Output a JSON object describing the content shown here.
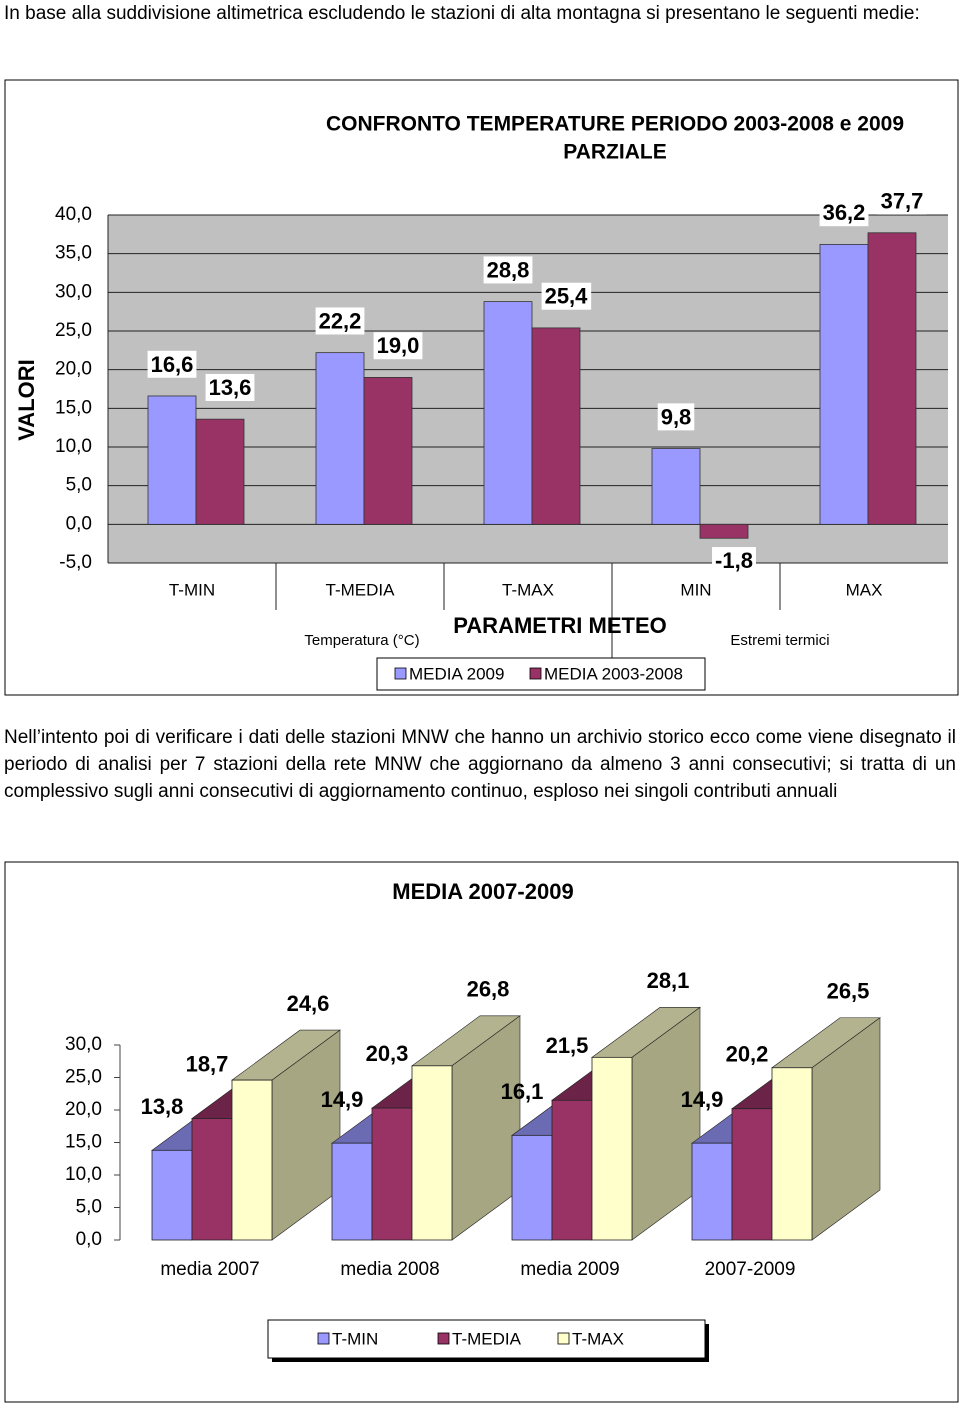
{
  "paragraphs": [
    "In base alla suddivisione altimetrica escludendo le stazioni di alta montagna si presentano le seguenti medie:",
    "Nell’intento poi di verificare i dati delle stazioni MNW che hanno un archivio storico ecco come viene disegnato il periodo di analisi per 7 stazioni della rete MNW che aggiornano da almeno 3 anni consecutivi; si tratta di un complessivo sugli anni consecutivi di aggiornamento continuo, esploso nei singoli contributi annuali"
  ],
  "chart_data": [
    {
      "type": "bar",
      "title": [
        "CONFRONTO TEMPERATURE PERIODO 2003-2008 e 2009",
        "PARZIALE"
      ],
      "ylabel": "VALORI",
      "xlabel": "PARAMETRI METEO",
      "annotations": [
        "Temperatura (°C)",
        "Estremi termici"
      ],
      "categories": [
        "T-MIN",
        "T-MEDIA",
        "T-MAX",
        "MIN",
        "MAX"
      ],
      "series": [
        {
          "name": "MEDIA 2009",
          "color": "#9999ff",
          "values": [
            16.6,
            22.2,
            28.8,
            9.8,
            36.2
          ],
          "value_labels": [
            "16,6",
            "22,2",
            "28,8",
            "9,8",
            "36,2"
          ]
        },
        {
          "name": "MEDIA 2003-2008",
          "color": "#993366",
          "values": [
            13.6,
            19.0,
            25.4,
            -1.8,
            37.7
          ],
          "value_labels": [
            "13,6",
            "19,0",
            "25,4",
            "-1,8",
            "37,7"
          ]
        }
      ],
      "ylim": [
        -5,
        40
      ],
      "yticks": [
        {
          "value": -5,
          "label": "-5,0"
        },
        {
          "value": 0,
          "label": "0,0"
        },
        {
          "value": 5,
          "label": "5,0"
        },
        {
          "value": 10,
          "label": "10,0"
        },
        {
          "value": 15,
          "label": "15,0"
        },
        {
          "value": 20,
          "label": "20,0"
        },
        {
          "value": 25,
          "label": "25,0"
        },
        {
          "value": 30,
          "label": "30,0"
        },
        {
          "value": 35,
          "label": "35,0"
        },
        {
          "value": 40,
          "label": "40,0"
        }
      ],
      "grid": true,
      "legend": "bottom"
    },
    {
      "type": "bar3d",
      "title": "MEDIA 2007-2009",
      "categories": [
        "media 2007",
        "media 2008",
        "media 2009",
        "2007-2009"
      ],
      "series": [
        {
          "name": "T-MIN",
          "color": "#9999ff",
          "values": [
            13.8,
            14.9,
            16.1,
            14.9
          ],
          "value_labels": [
            "13,8",
            "14,9",
            "16,1",
            "14,9"
          ]
        },
        {
          "name": "T-MEDIA",
          "color": "#993366",
          "values": [
            18.7,
            20.3,
            21.5,
            20.2
          ],
          "value_labels": [
            "18,7",
            "20,3",
            "21,5",
            "20,2"
          ]
        },
        {
          "name": "T-MAX",
          "color": "#ffffcc",
          "values": [
            24.6,
            26.8,
            28.1,
            26.5
          ],
          "value_labels": [
            "24,6",
            "26,8",
            "28,1",
            "26,5"
          ]
        }
      ],
      "ylim": [
        0,
        30
      ],
      "yticks": [
        {
          "value": 0,
          "label": "0,0"
        },
        {
          "value": 5,
          "label": "5,0"
        },
        {
          "value": 10,
          "label": "10,0"
        },
        {
          "value": 15,
          "label": "15,0"
        },
        {
          "value": 20,
          "label": "20,0"
        },
        {
          "value": 25,
          "label": "25,0"
        },
        {
          "value": 30,
          "label": "30,0"
        }
      ],
      "grid": false,
      "legend": "bottom"
    }
  ]
}
